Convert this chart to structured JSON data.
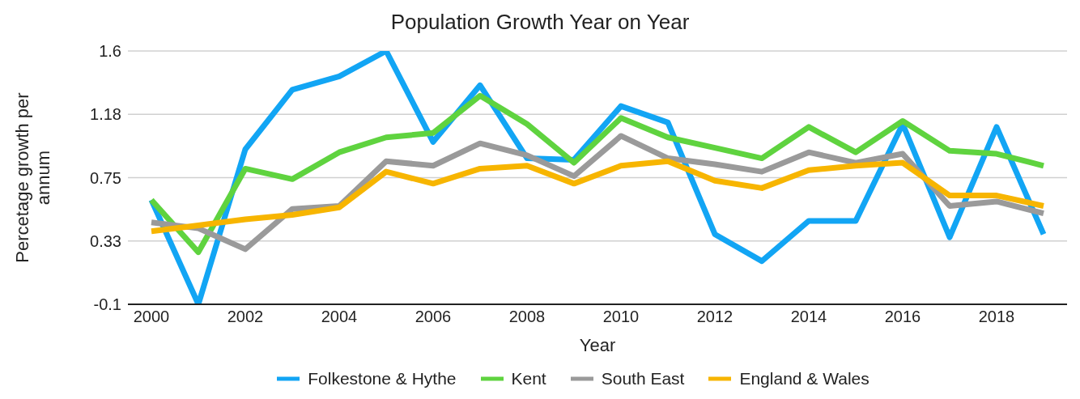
{
  "chart_data": {
    "type": "line",
    "title": "Population Growth Year on Year",
    "xlabel": "Year",
    "ylabel": "Percetage growth per annum",
    "x": [
      2000,
      2001,
      2002,
      2003,
      2004,
      2005,
      2006,
      2007,
      2008,
      2009,
      2010,
      2011,
      2012,
      2013,
      2014,
      2015,
      2016,
      2017,
      2018,
      2019
    ],
    "series": [
      {
        "name": "Folkestone & Hythe",
        "color": "#12a5f4",
        "values": [
          0.6,
          -0.1,
          0.94,
          1.34,
          1.43,
          1.6,
          0.99,
          1.37,
          0.88,
          0.87,
          1.23,
          1.12,
          0.37,
          0.19,
          0.46,
          0.46,
          1.11,
          0.35,
          1.09,
          0.37
        ]
      },
      {
        "name": "Kent",
        "color": "#5fd33f",
        "values": [
          0.6,
          0.25,
          0.81,
          0.74,
          0.92,
          1.02,
          1.05,
          1.3,
          1.11,
          0.85,
          1.15,
          1.02,
          0.95,
          0.88,
          1.09,
          0.92,
          1.13,
          0.93,
          0.91,
          0.83
        ]
      },
      {
        "name": "South East",
        "color": "#9a9a9a",
        "values": [
          0.45,
          0.41,
          0.27,
          0.54,
          0.56,
          0.86,
          0.83,
          0.98,
          0.9,
          0.76,
          1.03,
          0.88,
          0.84,
          0.79,
          0.92,
          0.85,
          0.91,
          0.56,
          0.59,
          0.51
        ]
      },
      {
        "name": "England & Wales",
        "color": "#f7b500",
        "values": [
          0.39,
          0.43,
          0.47,
          0.5,
          0.55,
          0.79,
          0.71,
          0.81,
          0.83,
          0.71,
          0.83,
          0.86,
          0.73,
          0.68,
          0.8,
          0.83,
          0.85,
          0.63,
          0.63,
          0.56
        ]
      }
    ],
    "xlim": [
      1999.5,
      2019.5
    ],
    "xticks": [
      2000,
      2002,
      2004,
      2006,
      2008,
      2010,
      2012,
      2014,
      2016,
      2018
    ],
    "ylim": [
      -0.1,
      1.6
    ],
    "yticks": [
      -0.1,
      {
        "value": 0.325,
        "label": "0.33"
      },
      0.75,
      {
        "value": 1.175,
        "label": "1.18"
      },
      1.6
    ],
    "grid": "y",
    "legend": "bottom",
    "line_style": "solid",
    "marker": "none"
  }
}
